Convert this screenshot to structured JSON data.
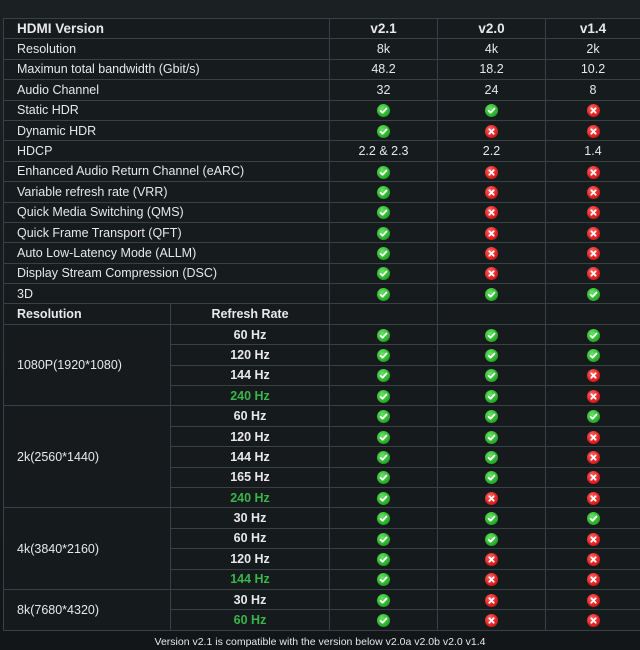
{
  "header": {
    "title": "HDMI Version",
    "versions": [
      "v2.1",
      "v2.0",
      "v1.4"
    ]
  },
  "features": [
    {
      "label": "Resolution",
      "v21": "8k",
      "v20": "4k",
      "v14": "2k"
    },
    {
      "label": "Maximun total bandwidth (Gbit/s)",
      "v21": "48.2",
      "v20": "18.2",
      "v14": "10.2"
    },
    {
      "label": "Audio Channel",
      "v21": "32",
      "v20": "24",
      "v14": "8"
    },
    {
      "label": "Static HDR",
      "v21": "yes",
      "v20": "yes",
      "v14": "no"
    },
    {
      "label": "Dynamic HDR",
      "v21": "yes",
      "v20": "no",
      "v14": "no"
    },
    {
      "label": "HDCP",
      "v21": "2.2 & 2.3",
      "v20": "2.2",
      "v14": "1.4"
    },
    {
      "label": "Enhanced Audio Return Channel (eARC)",
      "v21": "yes",
      "v20": "no",
      "v14": "no"
    },
    {
      "label": "Variable refresh rate (VRR)",
      "v21": "yes",
      "v20": "no",
      "v14": "no"
    },
    {
      "label": "Quick Media Switching (QMS)",
      "v21": "yes",
      "v20": "no",
      "v14": "no"
    },
    {
      "label": "Quick Frame Transport (QFT)",
      "v21": "yes",
      "v20": "no",
      "v14": "no"
    },
    {
      "label": "Auto Low-Latency Mode (ALLM)",
      "v21": "yes",
      "v20": "no",
      "v14": "no"
    },
    {
      "label": "Display Stream Compression (DSC)",
      "v21": "yes",
      "v20": "no",
      "v14": "no"
    },
    {
      "label": "3D",
      "v21": "yes",
      "v20": "yes",
      "v14": "yes"
    }
  ],
  "subheader": {
    "resolution": "Resolution",
    "refresh_rate": "Refresh Rate"
  },
  "resolutions": [
    {
      "name": "1080P(1920*1080)",
      "rates": [
        {
          "hz": "60 Hz",
          "highlight": false,
          "v21": "yes",
          "v20": "yes",
          "v14": "yes"
        },
        {
          "hz": "120 Hz",
          "highlight": false,
          "v21": "yes",
          "v20": "yes",
          "v14": "yes"
        },
        {
          "hz": "144 Hz",
          "highlight": false,
          "v21": "yes",
          "v20": "yes",
          "v14": "no"
        },
        {
          "hz": "240 Hz",
          "highlight": true,
          "v21": "yes",
          "v20": "yes",
          "v14": "no"
        }
      ]
    },
    {
      "name": "2k(2560*1440)",
      "rates": [
        {
          "hz": "60 Hz",
          "highlight": false,
          "v21": "yes",
          "v20": "yes",
          "v14": "yes"
        },
        {
          "hz": "120 Hz",
          "highlight": false,
          "v21": "yes",
          "v20": "yes",
          "v14": "no"
        },
        {
          "hz": "144 Hz",
          "highlight": false,
          "v21": "yes",
          "v20": "yes",
          "v14": "no"
        },
        {
          "hz": "165 Hz",
          "highlight": false,
          "v21": "yes",
          "v20": "yes",
          "v14": "no"
        },
        {
          "hz": "240 Hz",
          "highlight": true,
          "v21": "yes",
          "v20": "no",
          "v14": "no"
        }
      ]
    },
    {
      "name": "4k(3840*2160)",
      "rates": [
        {
          "hz": "30 Hz",
          "highlight": false,
          "v21": "yes",
          "v20": "yes",
          "v14": "yes"
        },
        {
          "hz": "60 Hz",
          "highlight": false,
          "v21": "yes",
          "v20": "yes",
          "v14": "no"
        },
        {
          "hz": "120 Hz",
          "highlight": false,
          "v21": "yes",
          "v20": "no",
          "v14": "no"
        },
        {
          "hz": "144 Hz",
          "highlight": true,
          "v21": "yes",
          "v20": "no",
          "v14": "no"
        }
      ]
    },
    {
      "name": "8k(7680*4320)",
      "rates": [
        {
          "hz": "30 Hz",
          "highlight": false,
          "v21": "yes",
          "v20": "no",
          "v14": "no"
        },
        {
          "hz": "60 Hz",
          "highlight": true,
          "v21": "yes",
          "v20": "no",
          "v14": "no"
        }
      ]
    }
  ],
  "footer": "Version v2.1 is compatible with the version below v2.0a v2.0b v2.0 v1.4",
  "colors": {
    "supported": "#2db52d",
    "unsupported": "#e42323",
    "highlight_text": "#39b54a"
  },
  "icons": {
    "yes": "check-circle-icon",
    "no": "x-circle-icon"
  }
}
